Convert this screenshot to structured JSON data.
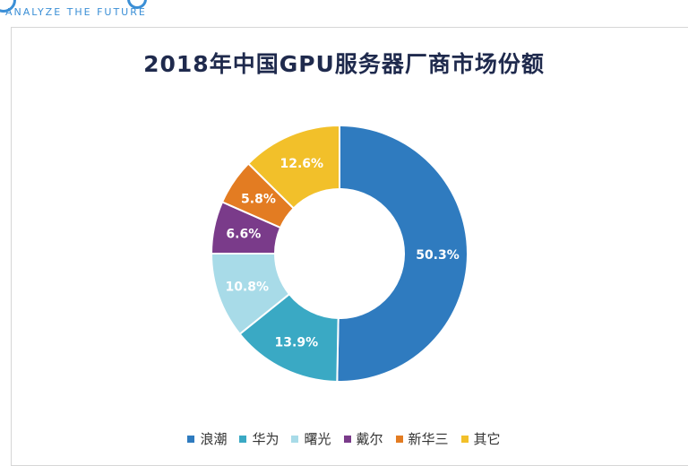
{
  "header": {
    "tagline": "ANALYZE THE FUTURE"
  },
  "chart_data": {
    "type": "pie",
    "title": "2018年中国GPU服务器厂商市场份额",
    "donut": true,
    "legend_position": "bottom",
    "slices": [
      {
        "label": "浪潮",
        "value": 50.3,
        "display": "50.3%",
        "color": "#2f7bbf"
      },
      {
        "label": "华为",
        "value": 13.9,
        "display": "13.9%",
        "color": "#3aa9c4"
      },
      {
        "label": "曙光",
        "value": 10.8,
        "display": "10.8%",
        "color": "#a8dbe8"
      },
      {
        "label": "戴尔",
        "value": 6.6,
        "display": "6.6%",
        "color": "#7a3b8a"
      },
      {
        "label": "新华三",
        "value": 5.8,
        "display": "5.8%",
        "color": "#e37c22"
      },
      {
        "label": "其它",
        "value": 12.6,
        "display": "12.6%",
        "color": "#f2c02a"
      }
    ]
  }
}
